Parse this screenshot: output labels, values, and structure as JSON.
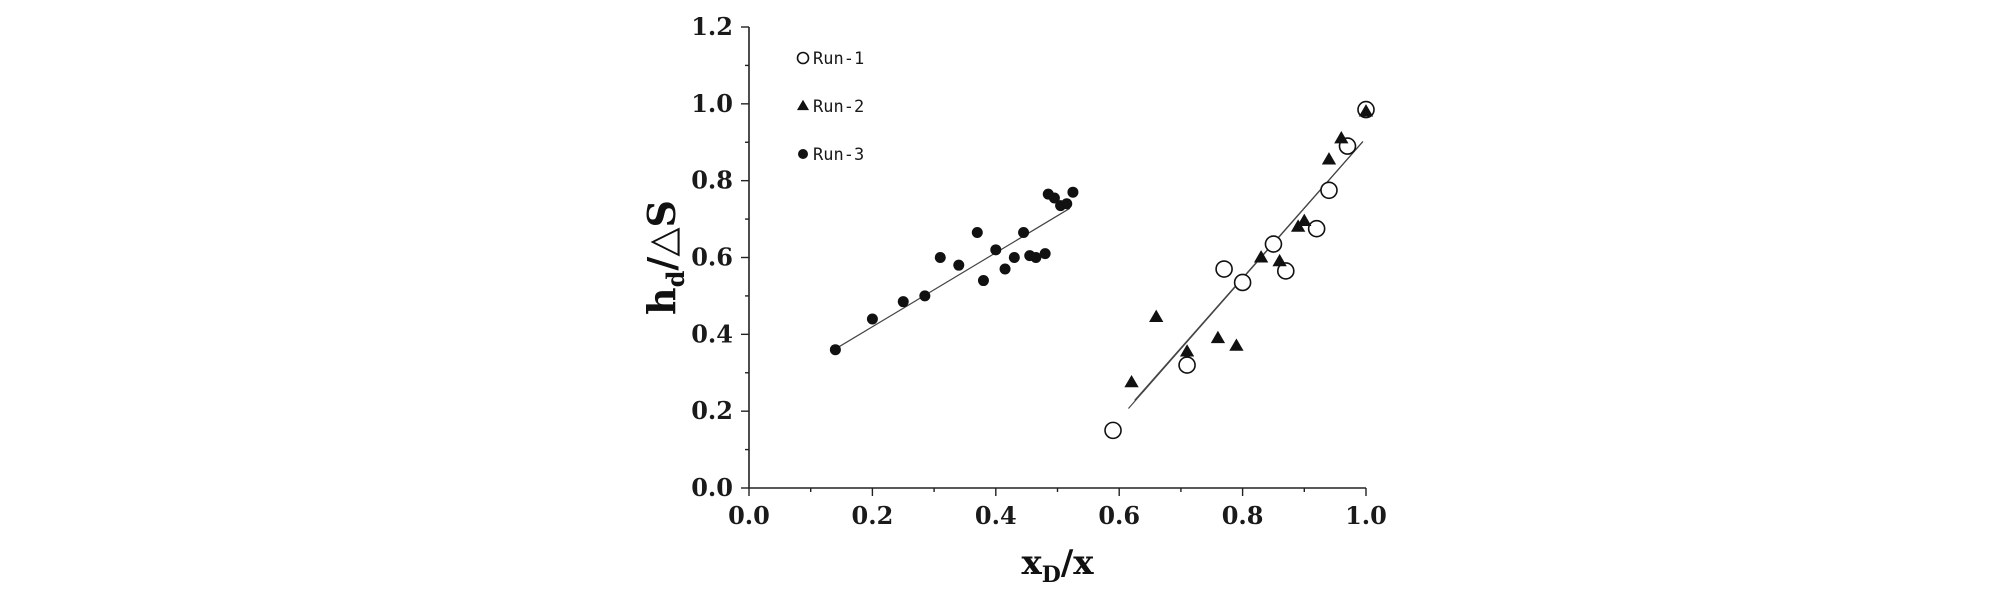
{
  "chart_data": {
    "type": "scatter",
    "xlabel": {
      "main": "x",
      "sub": "D",
      "tail": "/x"
    },
    "ylabel": {
      "main": "h",
      "sub": "d",
      "tail": "/△S"
    },
    "xlim": [
      0.0,
      1.0
    ],
    "ylim": [
      0.0,
      1.2
    ],
    "x_ticks": [
      "0.0",
      "0.2",
      "0.4",
      "0.6",
      "0.8",
      "1.0"
    ],
    "y_ticks": [
      "0.0",
      "0.2",
      "0.4",
      "0.6",
      "0.8",
      "1.0",
      "1.2"
    ],
    "grid": false,
    "legend_position": "top-left",
    "series": [
      {
        "name": "Run-1",
        "marker": "open-circle",
        "color": "#111111",
        "points": [
          [
            0.59,
            0.15
          ],
          [
            0.71,
            0.32
          ],
          [
            0.77,
            0.57
          ],
          [
            0.8,
            0.535
          ],
          [
            0.85,
            0.635
          ],
          [
            0.87,
            0.565
          ],
          [
            0.92,
            0.675
          ],
          [
            0.94,
            0.775
          ],
          [
            0.97,
            0.89
          ],
          [
            1.0,
            0.985
          ]
        ],
        "fit": [
          [
            0.615,
            0.207
          ],
          [
            0.995,
            0.902
          ]
        ]
      },
      {
        "name": "Run-2",
        "marker": "filled-triangle",
        "color": "#111111",
        "points": [
          [
            0.62,
            0.275
          ],
          [
            0.66,
            0.445
          ],
          [
            0.71,
            0.355
          ],
          [
            0.76,
            0.39
          ],
          [
            0.79,
            0.37
          ],
          [
            0.83,
            0.6
          ],
          [
            0.86,
            0.59
          ],
          [
            0.89,
            0.68
          ],
          [
            0.9,
            0.695
          ],
          [
            0.94,
            0.855
          ],
          [
            0.96,
            0.91
          ],
          [
            1.0,
            0.98
          ]
        ],
        "fit": [
          [
            0.625,
            0.228
          ],
          [
            0.995,
            0.902
          ]
        ]
      },
      {
        "name": "Run-3",
        "marker": "filled-circle",
        "color": "#111111",
        "points": [
          [
            0.14,
            0.36
          ],
          [
            0.2,
            0.44
          ],
          [
            0.25,
            0.485
          ],
          [
            0.285,
            0.5
          ],
          [
            0.31,
            0.6
          ],
          [
            0.34,
            0.58
          ],
          [
            0.37,
            0.665
          ],
          [
            0.38,
            0.54
          ],
          [
            0.4,
            0.62
          ],
          [
            0.415,
            0.57
          ],
          [
            0.43,
            0.6
          ],
          [
            0.445,
            0.665
          ],
          [
            0.455,
            0.605
          ],
          [
            0.465,
            0.6
          ],
          [
            0.48,
            0.61
          ],
          [
            0.485,
            0.765
          ],
          [
            0.495,
            0.755
          ],
          [
            0.505,
            0.735
          ],
          [
            0.515,
            0.74
          ],
          [
            0.525,
            0.77
          ]
        ],
        "fit": [
          [
            0.14,
            0.362
          ],
          [
            0.52,
            0.728
          ]
        ]
      }
    ]
  }
}
